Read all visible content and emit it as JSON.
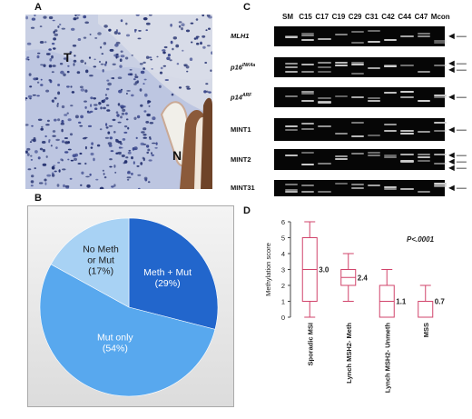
{
  "figure": {
    "panel_labels": {
      "a": "A",
      "b": "B",
      "c": "C",
      "d": "D"
    }
  },
  "histology": {
    "label_tumor": "T",
    "label_normal": "N"
  },
  "pie": {
    "colors": {
      "meth_mut": "#2266cc",
      "mut_only": "#58a8ee",
      "no_meth": "#a8d2f4"
    }
  },
  "gel": {
    "lanes": [
      "SM",
      "C15",
      "C17",
      "C19",
      "C29",
      "C31",
      "C42",
      "C44",
      "C47",
      "Mcon"
    ],
    "rows": [
      {
        "label": "MLH1",
        "italic": true
      },
      {
        "label": "p16",
        "sup": "INK4a",
        "italic": true
      },
      {
        "label": "p14",
        "sup": "ARF",
        "italic": true
      },
      {
        "label": "MINT1",
        "italic": false
      },
      {
        "label": "MINT2",
        "italic": false
      },
      {
        "label": "MINT31",
        "italic": false
      }
    ]
  },
  "chart_data": [
    {
      "type": "pie",
      "categories": [
        "Meth + Mut",
        "Mut only",
        "No Meth or Mut"
      ],
      "values": [
        29,
        54,
        17
      ],
      "labels": [
        [
          "Meth + Mut",
          "(29%)"
        ],
        [
          "Mut only",
          "(54%)"
        ],
        [
          "No Meth",
          "or Mut",
          "(17%)"
        ]
      ]
    },
    {
      "type": "box",
      "ylabel": "Methylation score",
      "ylim": [
        0,
        6
      ],
      "yticks": [
        0,
        1,
        2,
        3,
        4,
        5,
        6
      ],
      "annotation": "P<.0001",
      "categories": [
        "Sporadic MSI",
        "Lynch MSH2- Meth",
        "Lynch MSH2- Unmeth",
        "MSS"
      ],
      "series": [
        {
          "min": 0,
          "q1": 1,
          "median": 3,
          "q3": 5,
          "max": 6,
          "label": "3.0"
        },
        {
          "min": 1,
          "q1": 2,
          "median": 2.5,
          "q3": 3,
          "max": 4,
          "label": "2.4"
        },
        {
          "min": 0,
          "q1": 0,
          "median": 1,
          "q3": 2,
          "max": 3,
          "label": "1.1"
        },
        {
          "min": 0,
          "q1": 0,
          "median": 1,
          "q3": 1,
          "max": 2,
          "label": "0.7"
        }
      ],
      "color": "#d1446b"
    }
  ]
}
